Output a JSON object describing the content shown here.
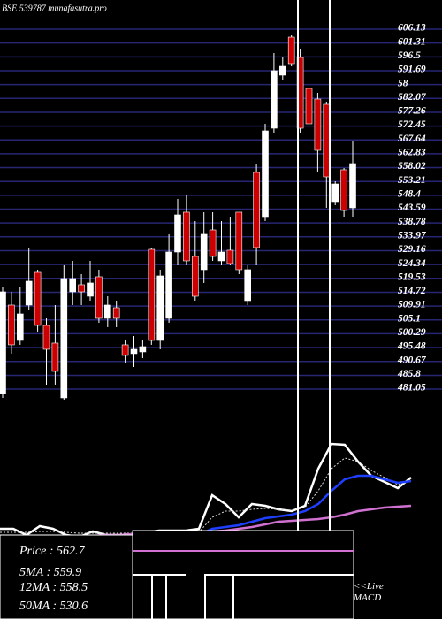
{
  "chart_data": {
    "type": "candlestick",
    "title": "BSE 539787 munafasutra.pro",
    "ylim": [
      481.05,
      606.13
    ],
    "yticks": [
      606.13,
      601.31,
      596.5,
      591.69,
      {
        "value": 586.88,
        "label": "58"
      },
      582.07,
      577.26,
      572.45,
      567.64,
      562.83,
      558.02,
      553.21,
      548.4,
      543.59,
      538.78,
      533.97,
      529.16,
      524.34,
      519.53,
      514.72,
      509.91,
      505.1,
      500.29,
      495.48,
      490.67,
      485.8,
      481.05
    ],
    "grid": true,
    "up_color": "#ffffff",
    "down_color": "#cc0000",
    "open": [
      479.53,
      510.25,
      497.96,
      510.25,
      521.62,
      503.19,
      497.04,
      477.99,
      514.86,
      517.32,
      513.32,
      520.09,
      505.64,
      509.33,
      496.43,
      493.36,
      493.97,
      529.61,
      497.96,
      505.64,
      528.69,
      542.52,
      527.16,
      522.55,
      536.37,
      525.62,
      529.31,
      542.52,
      511.79,
      556.35,
      540.98,
      571.71,
      590.15,
      603.36,
      596.3,
      585.54,
      581.85,
      580.01,
      546.21,
      557.27,
      544.06
    ],
    "high": [
      516.4,
      514.86,
      516.4,
      530.23,
      522.55,
      505.64,
      510.25,
      524.08,
      525.62,
      521.01,
      525.62,
      522.55,
      513.32,
      511.79,
      497.96,
      499.5,
      497.96,
      530.23,
      522.55,
      534.84,
      547.13,
      548.67,
      539.45,
      542.52,
      542.52,
      539.45,
      540.98,
      542.52,
      524.08,
      559.42,
      573.25,
      597.83,
      596.3,
      603.98,
      599.37,
      590.15,
      584.0,
      580.93,
      553.28,
      557.88,
      567.1
    ],
    "low": [
      477.99,
      493.36,
      496.43,
      508.71,
      501.04,
      482.6,
      482.6,
      477.38,
      510.25,
      510.25,
      511.79,
      504.11,
      502.57,
      502.57,
      490.28,
      488.74,
      491.81,
      496.43,
      494.89,
      504.11,
      524.08,
      524.08,
      511.79,
      517.94,
      525.62,
      524.08,
      524.08,
      521.01,
      510.25,
      524.08,
      539.45,
      570.17,
      588.61,
      593.22,
      570.17,
      565.57,
      556.35,
      544.06,
      544.98,
      540.98,
      540.98
    ],
    "close": [
      514.86,
      496.43,
      507.18,
      518.55,
      503.19,
      494.89,
      487.21,
      519.47,
      519.47,
      514.86,
      517.94,
      505.64,
      510.25,
      505.64,
      492.74,
      494.89,
      495.81,
      497.96,
      520.4,
      528.69,
      541.6,
      525.62,
      513.32,
      534.84,
      527.16,
      528.69,
      524.69,
      522.55,
      522.55,
      530.23,
      570.79,
      591.69,
      593.22,
      594.15,
      571.71,
      573.25,
      564.03,
      554.81,
      552.35,
      543.13,
      559.42
    ],
    "indicator_series": [
      {
        "color": "#ffffff",
        "values": [
          12,
          12,
          5,
          15,
          12,
          5,
          3,
          9,
          5,
          5,
          6,
          8,
          10,
          10,
          10,
          12,
          50,
          40,
          25,
          40,
          38,
          34,
          32,
          38,
          80,
          108,
          107,
          88,
          72,
          65,
          58,
          70
        ]
      },
      {
        "color": "#dddddd",
        "dashed": true,
        "values": [
          8,
          8,
          8,
          9,
          9,
          8,
          7,
          7,
          7,
          7,
          7,
          7,
          8,
          8,
          8,
          8,
          25,
          32,
          32,
          34,
          35,
          34,
          33,
          36,
          55,
          80,
          92,
          88,
          78,
          70,
          62,
          68
        ]
      },
      {
        "color": "#1f3fff",
        "values": [
          3,
          3,
          3,
          3,
          3,
          3,
          3,
          3,
          3,
          3,
          3,
          4,
          4,
          4,
          5,
          5,
          12,
          14,
          16,
          20,
          24,
          26,
          28,
          32,
          40,
          55,
          68,
          72,
          72,
          68,
          64,
          66
        ]
      },
      {
        "color": "#d070d0",
        "values": [
          4,
          4,
          3,
          4,
          4,
          4,
          4,
          4,
          5,
          5,
          6,
          6,
          6,
          7,
          7,
          8,
          9,
          10,
          12,
          14,
          17,
          20,
          21,
          22,
          23,
          25,
          28,
          32,
          34,
          36,
          37,
          38
        ]
      }
    ],
    "info": [
      "Price  : 562.7",
      "5MA  : 559.9",
      "12MA : 558.5",
      "50MA : 530.6"
    ],
    "note": "<<Live MACD"
  }
}
